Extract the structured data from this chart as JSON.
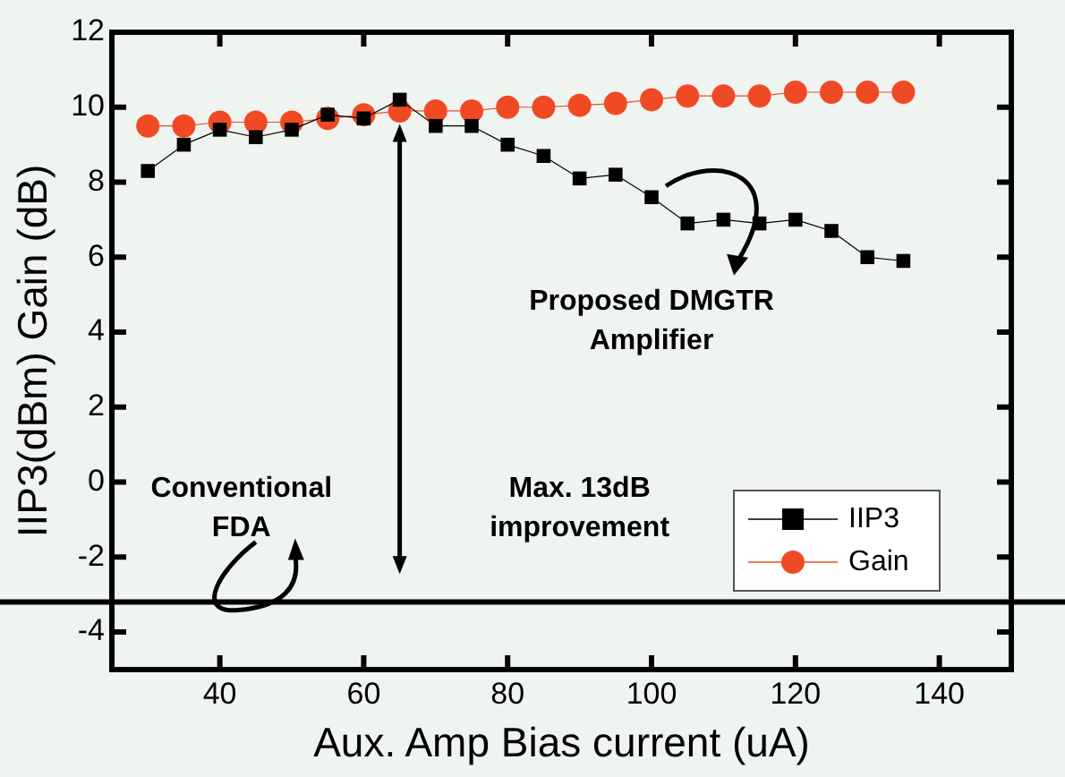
{
  "chart_data": {
    "type": "line",
    "xlabel": "Aux. Amp Bias current (uA)",
    "ylabel": "IIP3(dBm) Gain (dB)",
    "x": [
      30,
      35,
      40,
      45,
      50,
      55,
      60,
      65,
      70,
      75,
      80,
      85,
      90,
      95,
      100,
      105,
      110,
      115,
      120,
      125,
      130,
      135
    ],
    "series": [
      {
        "name": "IIP3",
        "color": "#000000",
        "marker": "square",
        "values": [
          8.3,
          9.0,
          9.4,
          9.2,
          9.4,
          9.8,
          9.7,
          10.2,
          9.5,
          9.5,
          9.0,
          8.7,
          8.1,
          8.2,
          7.6,
          6.9,
          7.0,
          6.9,
          7.0,
          6.7,
          6.0,
          5.9
        ]
      },
      {
        "name": "Gain",
        "color": "#f04a25",
        "marker": "circle",
        "values": [
          9.5,
          9.5,
          9.6,
          9.6,
          9.6,
          9.7,
          9.8,
          9.9,
          9.9,
          9.9,
          10.0,
          10.0,
          10.05,
          10.1,
          10.2,
          10.3,
          10.3,
          10.3,
          10.4,
          10.4,
          10.4,
          10.4
        ]
      }
    ],
    "xlim": [
      25,
      150
    ],
    "xticks": [
      40,
      60,
      80,
      100,
      120,
      140
    ],
    "ylim": [
      -5,
      12
    ],
    "yticks": [
      -4,
      -2,
      0,
      2,
      4,
      6,
      8,
      10,
      12
    ],
    "ref_lines": [
      {
        "axis": "y",
        "value": -3.2,
        "color": "#000000"
      }
    ],
    "annotations": [
      "Proposed DMGTR\nAmplifier",
      "Max. 13dB\nimprovement",
      "Conventional\nFDA"
    ],
    "legend": "bottom right",
    "grid": false
  }
}
